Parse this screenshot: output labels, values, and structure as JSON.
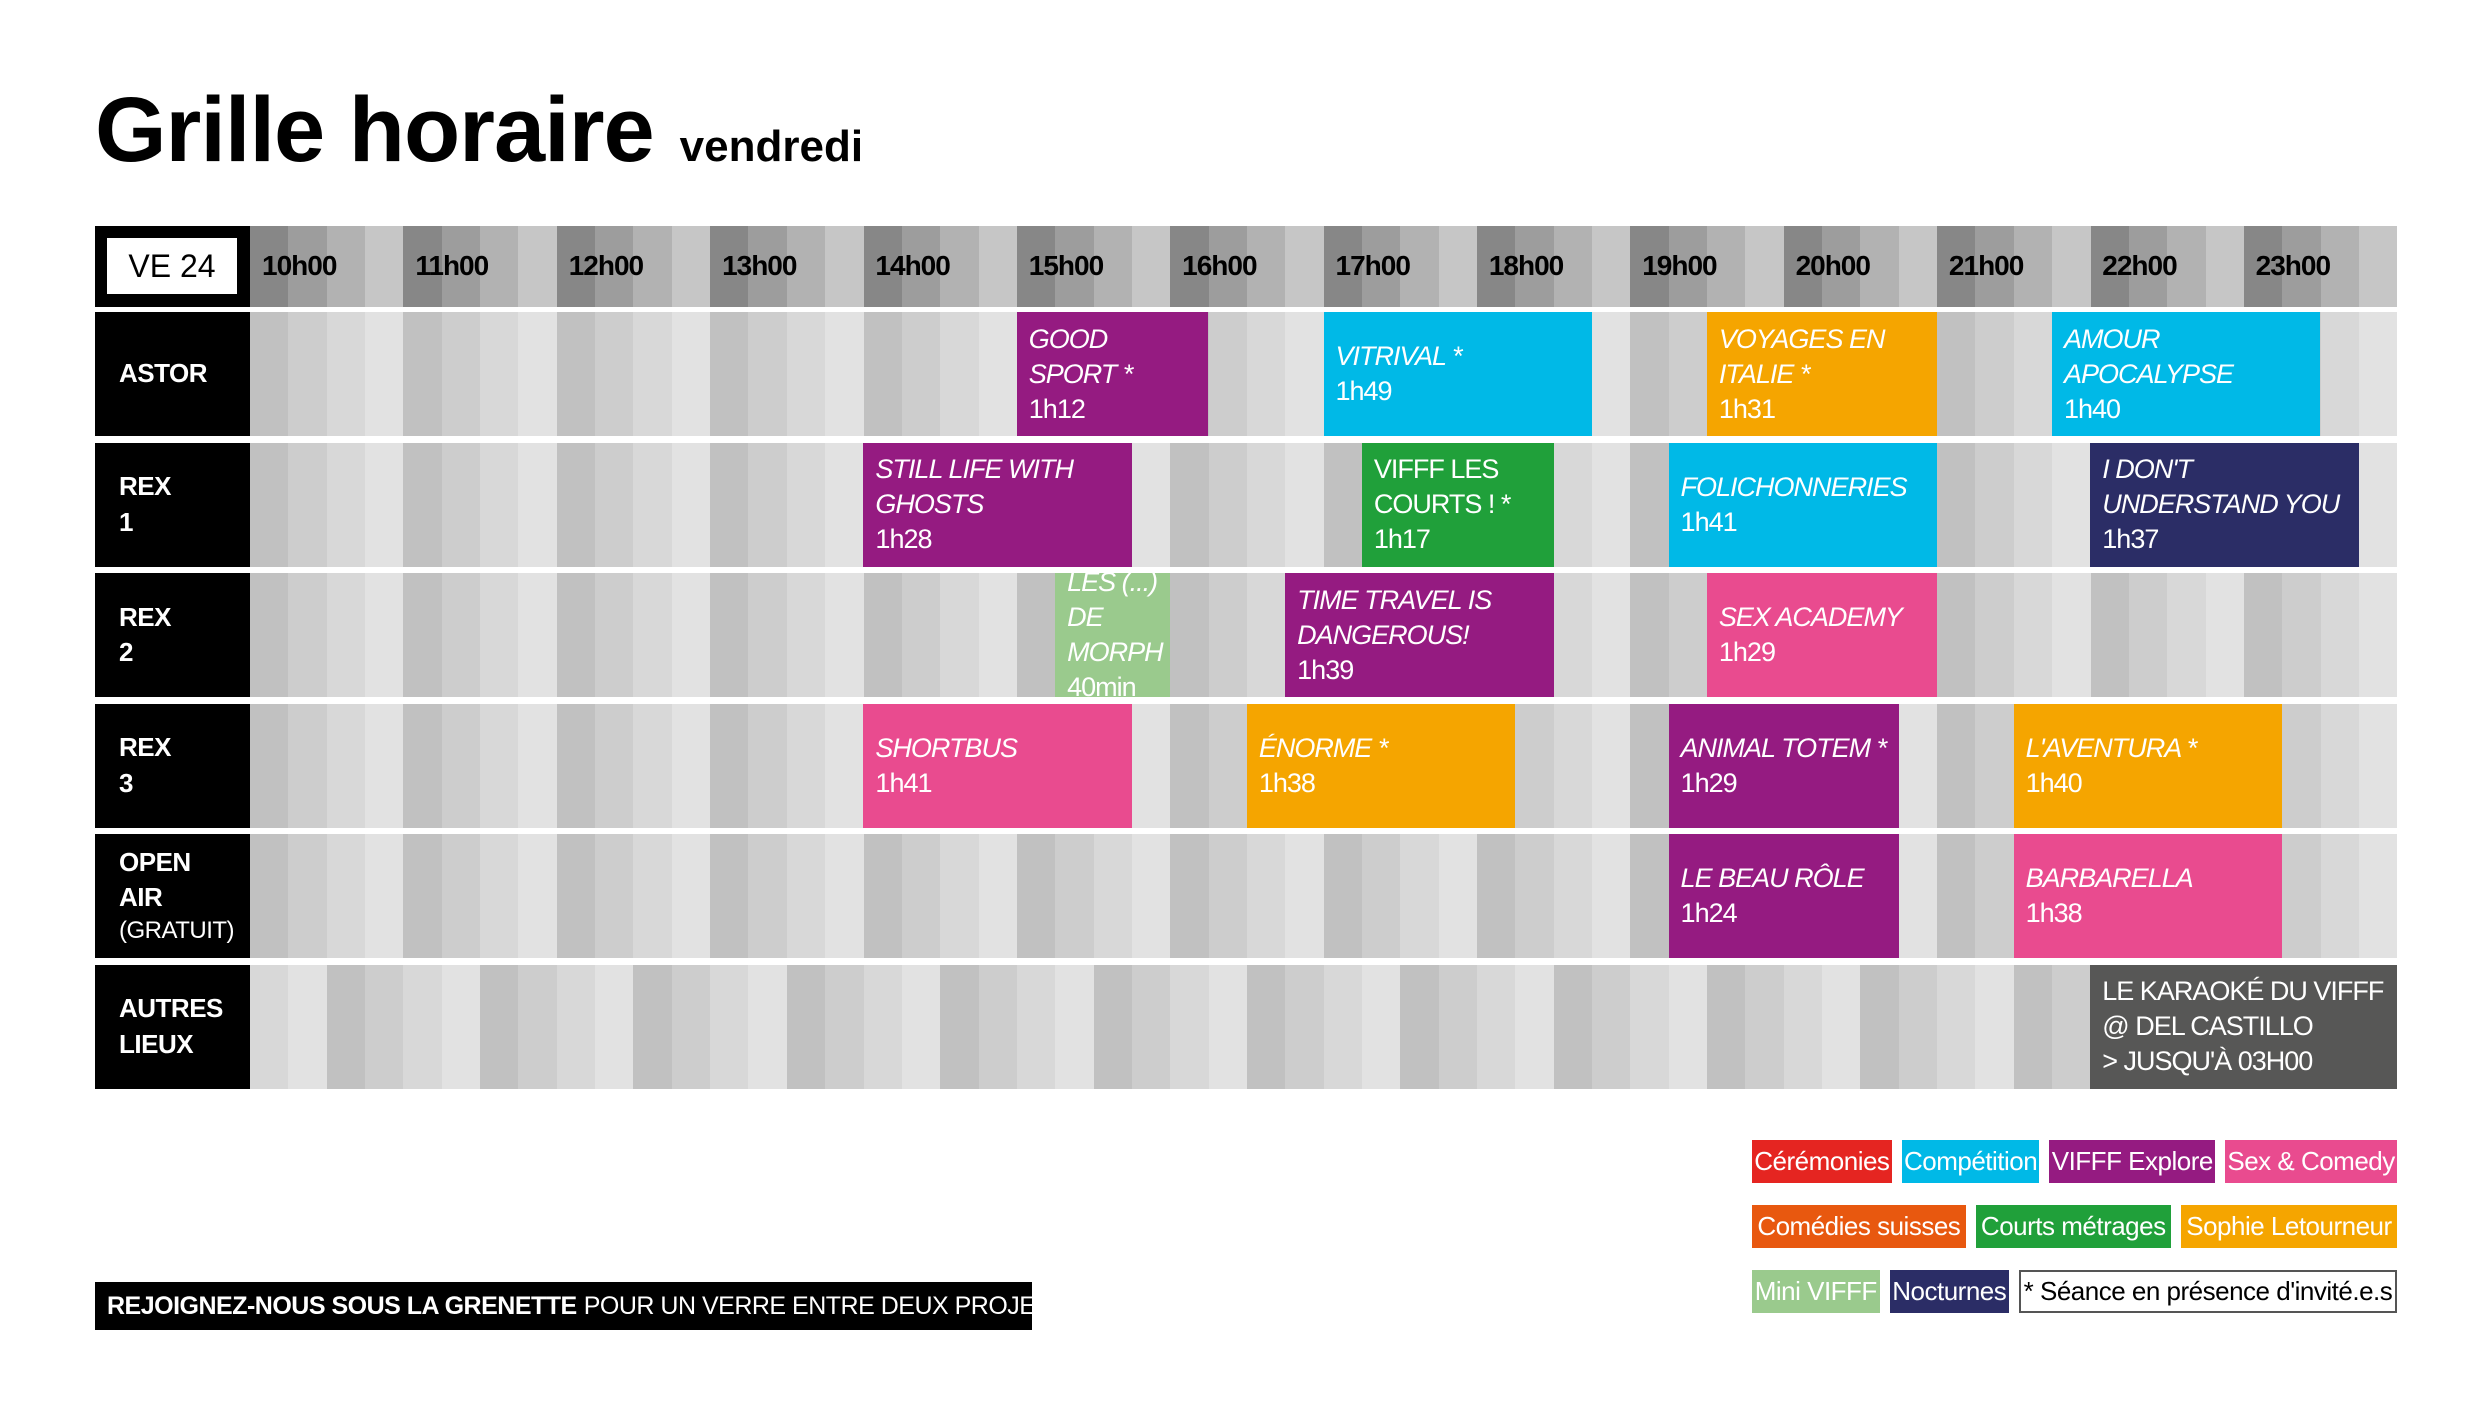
{
  "title": {
    "main": "Grille horaire",
    "sub": "vendredi"
  },
  "header": {
    "day": "VE 24",
    "hours": [
      "10h00",
      "11h00",
      "12h00",
      "13h00",
      "14h00",
      "15h00",
      "16h00",
      "17h00",
      "18h00",
      "19h00",
      "20h00",
      "21h00",
      "22h00",
      "23h00"
    ]
  },
  "colors": {
    "ceremonies": "#e52521",
    "competition": "#00b9e7",
    "explore": "#951b81",
    "sexcomedy": "#e94b8f",
    "comedies": "#e8580f",
    "courts": "#20a03a",
    "sophie": "#f5a500",
    "mini": "#9aca8d",
    "nocturnes": "#2b2d66",
    "autres": "#575756"
  },
  "venues": [
    {
      "name": "ASTOR",
      "events": [
        {
          "title": "GOOD SPORT *",
          "duration": "1h12",
          "start": 15.0,
          "end": 16.25,
          "color": "#951b81"
        },
        {
          "title": "VITRIVAL *",
          "duration": "1h49",
          "start": 17.0,
          "end": 18.75,
          "color": "#00b9e7"
        },
        {
          "title": "VOYAGES EN ITALIE *",
          "duration": "1h31",
          "start": 19.5,
          "end": 21.0,
          "color": "#f5a500"
        },
        {
          "title": "AMOUR APOCALYPSE",
          "duration": "1h40",
          "start": 21.75,
          "end": 23.5,
          "color": "#00b9e7"
        }
      ]
    },
    {
      "name": "REX 1",
      "events": [
        {
          "title": "STILL LIFE WITH GHOSTS",
          "duration": "1h28",
          "start": 14.0,
          "end": 15.75,
          "color": "#951b81"
        },
        {
          "title": "VIFFF LES COURTS ! *",
          "duration": "1h17",
          "start": 17.25,
          "end": 18.5,
          "color": "#20a03a",
          "upright": true
        },
        {
          "title": "FOLICHONNERIES",
          "duration": "1h41",
          "start": 19.25,
          "end": 21.0,
          "color": "#00b9e7"
        },
        {
          "title": "I DON'T UNDERSTAND YOU",
          "duration": "1h37",
          "start": 22.0,
          "end": 23.75,
          "color": "#2b2d66"
        }
      ]
    },
    {
      "name": "REX 2",
      "events": [
        {
          "title": "LES (...) DE MORPH",
          "duration": "40min",
          "start": 15.25,
          "end": 16.0,
          "color": "#9aca8d"
        },
        {
          "title": "TIME TRAVEL IS DANGEROUS!",
          "duration": "1h39",
          "start": 16.75,
          "end": 18.5,
          "color": "#951b81"
        },
        {
          "title": "SEX ACADEMY",
          "duration": "1h29",
          "start": 19.5,
          "end": 21.0,
          "color": "#e94b8f"
        }
      ]
    },
    {
      "name": "REX 3",
      "events": [
        {
          "title": "SHORTBUS",
          "duration": "1h41",
          "start": 14.0,
          "end": 15.75,
          "color": "#e94b8f"
        },
        {
          "title": "ÉNORME *",
          "duration": "1h38",
          "start": 16.5,
          "end": 18.25,
          "color": "#f5a500"
        },
        {
          "title": "ANIMAL TOTEM *",
          "duration": "1h29",
          "start": 19.25,
          "end": 20.75,
          "color": "#951b81"
        },
        {
          "title": "L'AVENTURA *",
          "duration": "1h40",
          "start": 21.5,
          "end": 23.25,
          "color": "#f5a500"
        }
      ]
    },
    {
      "name": "OPEN AIR",
      "note": "(GRATUIT)",
      "events": [
        {
          "title": "LE BEAU RÔLE",
          "duration": "1h24",
          "start": 19.25,
          "end": 20.75,
          "color": "#951b81"
        },
        {
          "title": "BARBARELLA",
          "duration": "1h38",
          "start": 21.5,
          "end": 23.25,
          "color": "#e94b8f"
        }
      ]
    },
    {
      "name": "AUTRES LIEUX",
      "events": [
        {
          "title": "LE KARAOKÉ DU VIFFF @ DEL CASTILLO",
          "duration": "> JUSQU'À 03H00",
          "start": 22.0,
          "end": 24.0,
          "color": "#575756",
          "upright": true
        }
      ]
    }
  ],
  "legend": [
    [
      {
        "label": "Cérémonies",
        "color": "#e52521"
      },
      {
        "label": "Compétition",
        "color": "#00b9e7"
      },
      {
        "label": "VIFFF Explore",
        "color": "#951b81"
      },
      {
        "label": "Sex & Comedy",
        "color": "#e94b8f"
      }
    ],
    [
      {
        "label": "Comédies suisses",
        "color": "#e8580f"
      },
      {
        "label": "Courts métrages",
        "color": "#20a03a"
      },
      {
        "label": "Sophie Letourneur",
        "color": "#f5a500"
      }
    ],
    [
      {
        "label": "Mini VIFFF",
        "color": "#9aca8d"
      },
      {
        "label": "Nocturnes",
        "color": "#2b2d66"
      },
      {
        "label": "* Séance en présence d'invité.e.s",
        "color": "#ffffff",
        "note": true
      }
    ]
  ],
  "banner": {
    "bold": "REJOIGNEZ-NOUS SOUS LA GRENETTE",
    "text": "POUR UN VERRE ENTRE DEUX PROJECTIONS !"
  }
}
